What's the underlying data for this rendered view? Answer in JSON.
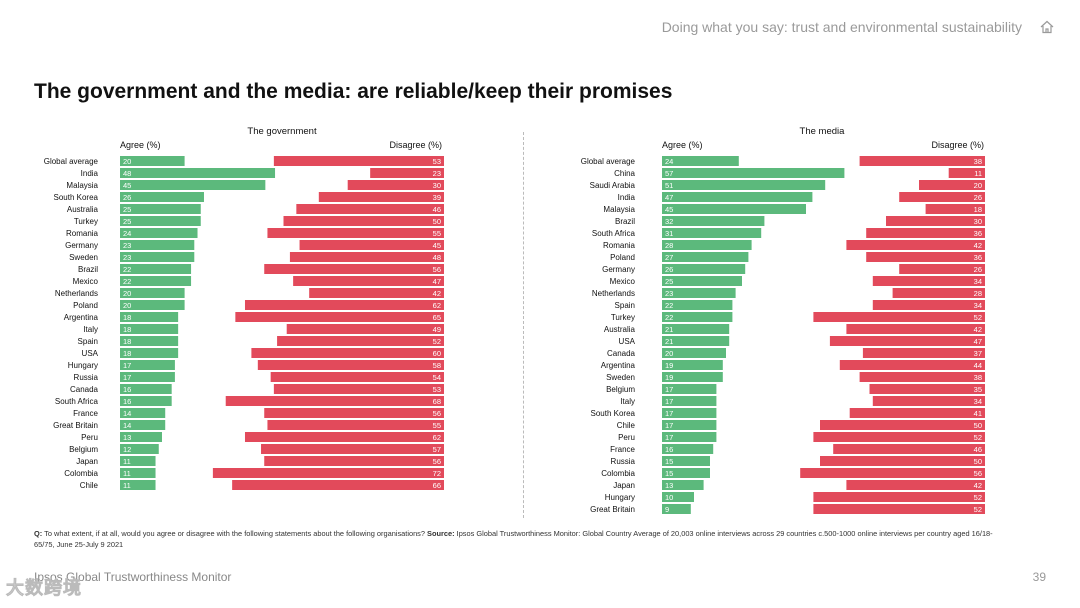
{
  "header": {
    "section_title": "Doing what you say: trust and environmental sustainability",
    "home_icon": "home-icon"
  },
  "page_title": "The government and the media: are reliable/keep their promises",
  "colors": {
    "agree": "#5cb97c",
    "disagree": "#e24a5b",
    "text": "#111111"
  },
  "chart_data": [
    {
      "type": "bar",
      "title": "The government",
      "agree_label": "Agree (%)",
      "disagree_label": "Disagree (%)",
      "categories": [
        "Global average",
        "India",
        "Malaysia",
        "South Korea",
        "Australia",
        "Turkey",
        "Romania",
        "Germany",
        "Sweden",
        "Brazil",
        "Mexico",
        "Netherlands",
        "Poland",
        "Argentina",
        "Italy",
        "Spain",
        "USA",
        "Hungary",
        "Russia",
        "Canada",
        "South Africa",
        "France",
        "Great Britain",
        "Peru",
        "Belgium",
        "Japan",
        "Colombia",
        "Chile"
      ],
      "series": [
        {
          "name": "Agree (%)",
          "values": [
            20,
            48,
            45,
            26,
            25,
            25,
            24,
            23,
            23,
            22,
            22,
            20,
            20,
            18,
            18,
            18,
            18,
            17,
            17,
            16,
            16,
            14,
            14,
            13,
            12,
            11,
            11,
            11
          ]
        },
        {
          "name": "Disagree (%)",
          "values": [
            53,
            23,
            30,
            39,
            46,
            50,
            55,
            45,
            48,
            56,
            47,
            42,
            62,
            65,
            49,
            52,
            60,
            58,
            54,
            53,
            68,
            56,
            55,
            62,
            57,
            56,
            72,
            66
          ]
        }
      ]
    },
    {
      "type": "bar",
      "title": "The media",
      "agree_label": "Agree (%)",
      "disagree_label": "Disagree (%)",
      "categories": [
        "Global average",
        "China",
        "Saudi Arabia",
        "India",
        "Malaysia",
        "Brazil",
        "South Africa",
        "Romania",
        "Poland",
        "Germany",
        "Mexico",
        "Netherlands",
        "Spain",
        "Turkey",
        "Australia",
        "USA",
        "Canada",
        "Argentina",
        "Sweden",
        "Belgium",
        "Italy",
        "South Korea",
        "Chile",
        "Peru",
        "France",
        "Russia",
        "Colombia",
        "Japan",
        "Hungary",
        "Great Britain"
      ],
      "series": [
        {
          "name": "Agree (%)",
          "values": [
            24,
            57,
            51,
            47,
            45,
            32,
            31,
            28,
            27,
            26,
            25,
            23,
            22,
            22,
            21,
            21,
            20,
            19,
            19,
            17,
            17,
            17,
            17,
            17,
            16,
            15,
            15,
            13,
            10,
            9
          ]
        },
        {
          "name": "Disagree (%)",
          "values": [
            38,
            11,
            20,
            26,
            18,
            30,
            36,
            42,
            36,
            26,
            34,
            28,
            34,
            52,
            42,
            47,
            37,
            44,
            38,
            35,
            34,
            41,
            50,
            52,
            46,
            50,
            56,
            42,
            52,
            52
          ]
        }
      ]
    }
  ],
  "footnote": {
    "q_label": "Q:",
    "question": "To what extent, if at all, would you agree or disagree with the following statements about the following organisations?",
    "source_label": "Source:",
    "source": "Ipsos Global Trustworthiness Monitor: Global Country Average of 20,003 online interviews across 29 countries c.500-1000 online interviews per country aged 16/18-65/75, June 25-July 9 2021"
  },
  "footer": {
    "left": "Ipsos Global Trustworthiness Monitor",
    "page_number": "39"
  },
  "watermark": "大数跨境"
}
